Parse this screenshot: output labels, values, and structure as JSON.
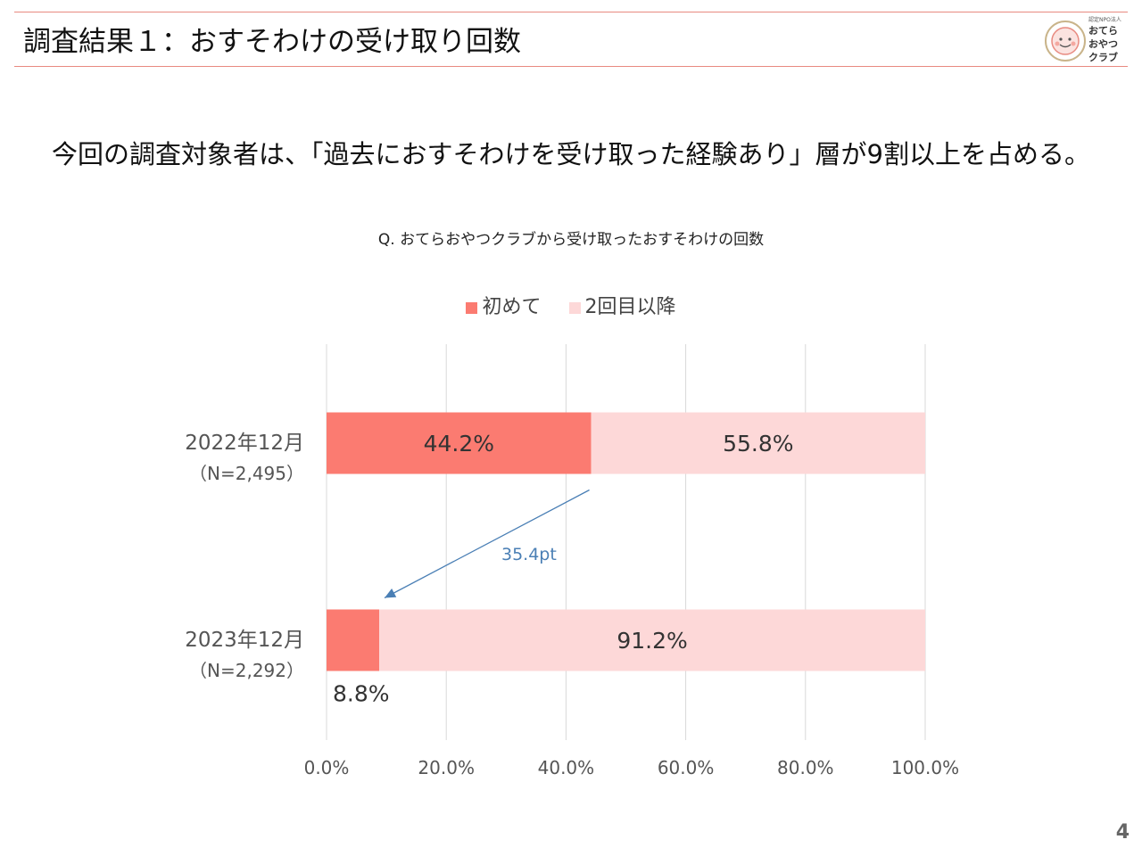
{
  "header": {
    "title": "調査結果１：おすそわけの受け取り回数"
  },
  "logo": {
    "org_label": "認定NPO法人",
    "name_line1": "おてら",
    "name_line2": "おやつ",
    "name_line3": "クラブ"
  },
  "headline": "今回の調査対象者は、「過去におすそわけを受け取った経験あり」層が9割以上を占める。",
  "colors": {
    "accent_line": "#e88a80",
    "first_time": "#fb7b71",
    "repeat": "#fdd8d8",
    "annotation": "#4a7fb5",
    "grid": "#d9d9d9"
  },
  "chart_data": {
    "type": "bar",
    "orientation": "horizontal",
    "stacked": true,
    "title": "Q.  おてらおやつクラブから受け取ったおすそわけの回数",
    "categories": [
      {
        "label": "2022年12月",
        "sublabel": "（N=2,495）"
      },
      {
        "label": "2023年12月",
        "sublabel": "（N=2,292）"
      }
    ],
    "series": [
      {
        "name": "初めて",
        "values": [
          44.2,
          8.8
        ],
        "labels": [
          "44.2%",
          "8.8%"
        ],
        "color": "#fb7b71"
      },
      {
        "name": "2回目以降",
        "values": [
          55.8,
          91.2
        ],
        "labels": [
          "55.8%",
          "91.2%"
        ],
        "color": "#fdd8d8"
      }
    ],
    "xlim": [
      0,
      100
    ],
    "xticks": [
      0,
      20,
      40,
      60,
      80,
      100
    ],
    "xtick_labels": [
      "0.0%",
      "20.0%",
      "40.0%",
      "60.0%",
      "80.0%",
      "100.0%"
    ],
    "grid": true,
    "legend_position": "top",
    "annotation": {
      "text": "35.4pt",
      "from": {
        "category": 0,
        "value": 44.2
      },
      "to": {
        "category": 1,
        "value": 8.8
      }
    }
  },
  "page_number": "4"
}
